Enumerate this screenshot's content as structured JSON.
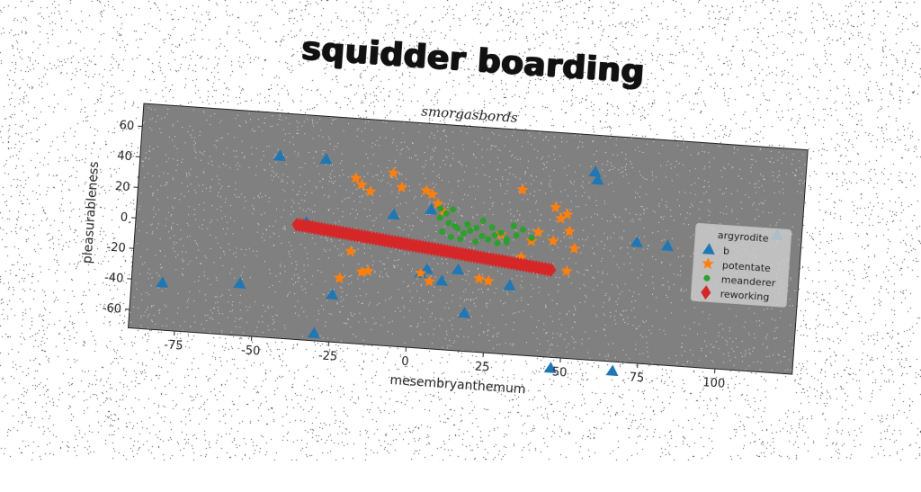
{
  "chart_data": {
    "type": "scatter",
    "title": "squidder boarding",
    "subtitle": "smorgasbords",
    "xlabel": "mesembryanthemum",
    "ylabel": "pleasurableness",
    "xlim": [
      -90,
      125
    ],
    "ylim": [
      -72,
      75
    ],
    "xticks": [
      -75,
      -50,
      -25,
      0,
      25,
      50,
      75,
      100
    ],
    "yticks": [
      -60,
      -40,
      -20,
      0,
      20,
      40,
      60
    ],
    "grid": false,
    "legend": {
      "title": "argyrodite",
      "placement": "right"
    },
    "series": [
      {
        "name": "b",
        "marker": "triangle",
        "color": "#1f77b4",
        "points": [
          [
            -45,
            47
          ],
          [
            -30,
            47
          ],
          [
            -80,
            -41
          ],
          [
            -55,
            -38
          ],
          [
            -35,
            5
          ],
          [
            -25,
            -41
          ],
          [
            -30,
            -67
          ],
          [
            -7,
            14
          ],
          [
            5,
            19
          ],
          [
            3,
            -23
          ],
          [
            5,
            -20
          ],
          [
            10,
            -27
          ],
          [
            15,
            -19
          ],
          [
            18,
            -47
          ],
          [
            32,
            -27
          ],
          [
            47,
            -79
          ],
          [
            57,
            51
          ],
          [
            58,
            46
          ],
          [
            67,
            -78
          ],
          [
            72,
            7
          ],
          [
            82,
            6
          ],
          [
            117,
            18
          ]
        ]
      },
      {
        "name": "potentate",
        "marker": "star",
        "color": "#ff7f0e",
        "points": [
          [
            -20,
            36
          ],
          [
            -18,
            32
          ],
          [
            -15,
            28
          ],
          [
            -8,
            41
          ],
          [
            -5,
            32
          ],
          [
            3,
            31
          ],
          [
            5,
            29
          ],
          [
            7,
            23
          ],
          [
            9,
            18
          ],
          [
            -20,
            -12
          ],
          [
            -23,
            -30
          ],
          [
            -16,
            -25
          ],
          [
            -14,
            -24
          ],
          [
            3,
            -23
          ],
          [
            6,
            -28
          ],
          [
            22,
            -24
          ],
          [
            25,
            -25
          ],
          [
            34,
            36
          ],
          [
            40,
            9
          ],
          [
            45,
            26
          ],
          [
            47,
            19
          ],
          [
            49,
            22
          ],
          [
            50,
            11
          ],
          [
            45,
            4
          ],
          [
            52,
            0
          ],
          [
            50,
            -15
          ],
          [
            38,
            3
          ],
          [
            28,
            6
          ],
          [
            35,
            -8
          ]
        ]
      },
      {
        "name": "meanderer",
        "marker": "circle",
        "color": "#2ca02c",
        "points": [
          [
            8,
            20
          ],
          [
            10,
            17
          ],
          [
            12,
            20
          ],
          [
            8,
            14
          ],
          [
            11,
            11
          ],
          [
            13,
            9
          ],
          [
            9,
            5
          ],
          [
            14,
            8
          ],
          [
            16,
            5
          ],
          [
            12,
            2
          ],
          [
            17,
            11
          ],
          [
            20,
            9
          ],
          [
            22,
            4
          ],
          [
            25,
            10
          ],
          [
            28,
            7
          ],
          [
            30,
            3
          ],
          [
            24,
            2
          ],
          [
            32,
            12
          ],
          [
            35,
            10
          ],
          [
            27,
            0
          ],
          [
            20,
            0
          ],
          [
            15,
            1
          ],
          [
            38,
            5
          ],
          [
            22,
            14
          ],
          [
            18,
            7
          ],
          [
            30,
            1
          ],
          [
            26,
            5
          ],
          [
            33,
            6
          ]
        ]
      },
      {
        "name": "reworking",
        "marker": "diamond",
        "color": "#d62728",
        "line": {
          "x_start": -38,
          "y_start": 3,
          "x_end": 45,
          "y_end": -15,
          "count": 84
        }
      }
    ]
  }
}
